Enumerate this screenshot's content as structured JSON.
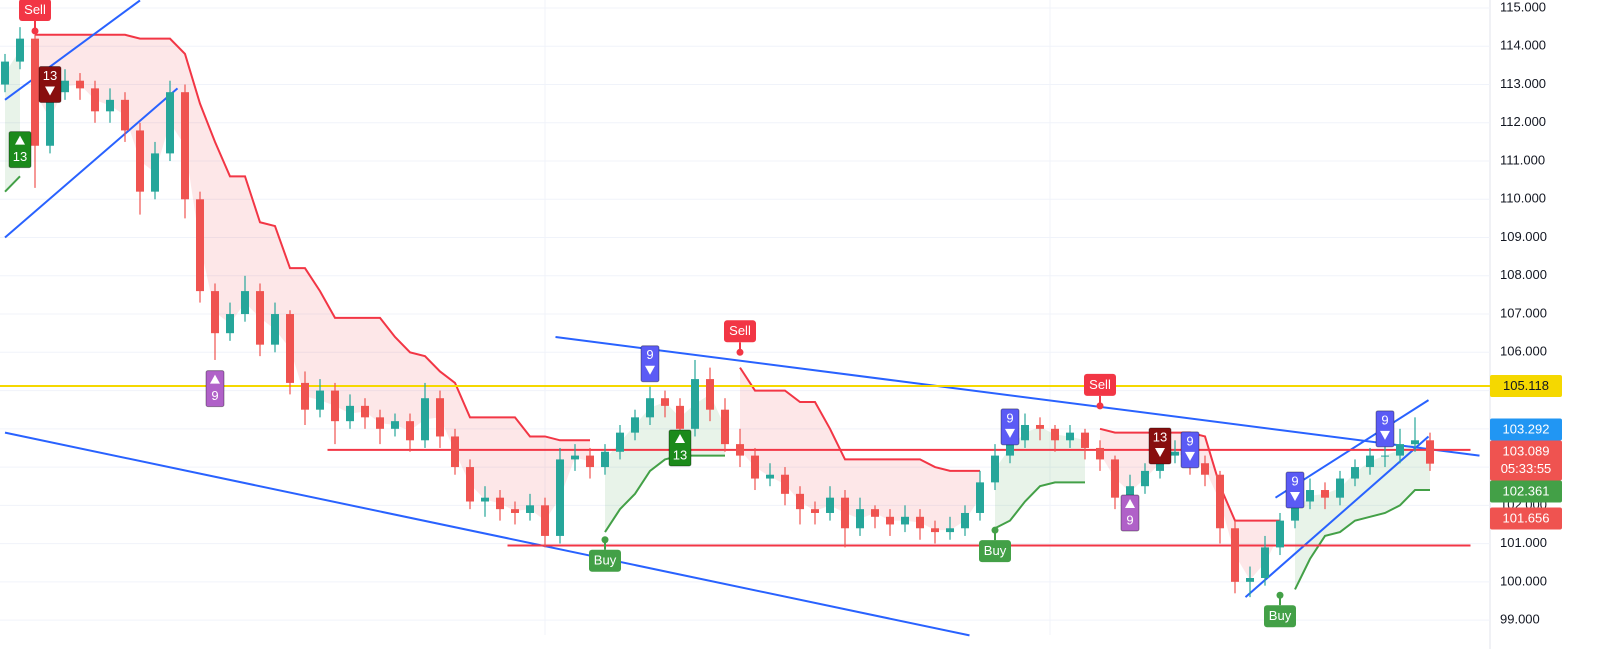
{
  "chart_data": {
    "type": "candlestick",
    "ylim": [
      98.61,
      115.21
    ],
    "yticks": [
      {
        "value": 99,
        "label": "99.000"
      },
      {
        "value": 100,
        "label": "100.000"
      },
      {
        "value": 101,
        "label": "101.000"
      },
      {
        "value": 102,
        "label": "102.000"
      },
      {
        "value": 103,
        "label": "103.000"
      },
      {
        "value": 104,
        "label": "104.000"
      },
      {
        "value": 105,
        "label": "105.000"
      },
      {
        "value": 106,
        "label": "106.000"
      },
      {
        "value": 107,
        "label": "107.000"
      },
      {
        "value": 108,
        "label": "108.000"
      },
      {
        "value": 109,
        "label": "109.000"
      },
      {
        "value": 110,
        "label": "110.000"
      },
      {
        "value": 111,
        "label": "111.000"
      },
      {
        "value": 112,
        "label": "112.000"
      },
      {
        "value": 113,
        "label": "113.000"
      },
      {
        "value": 114,
        "label": "114.000"
      },
      {
        "value": 115,
        "label": "115.000"
      }
    ],
    "grid": true,
    "up_color": "#26a69a",
    "down_color": "#ef5350",
    "ohlc": [
      [
        113.0,
        113.8,
        112.8,
        113.6
      ],
      [
        113.6,
        114.5,
        113.4,
        114.2
      ],
      [
        114.2,
        114.3,
        110.3,
        111.4
      ],
      [
        111.4,
        113.0,
        111.2,
        112.8
      ],
      [
        112.8,
        113.4,
        112.6,
        113.1
      ],
      [
        113.1,
        113.3,
        112.6,
        112.9
      ],
      [
        112.9,
        113.1,
        112.0,
        112.3
      ],
      [
        112.3,
        112.9,
        112.0,
        112.6
      ],
      [
        112.6,
        112.8,
        111.5,
        111.8
      ],
      [
        111.8,
        112.0,
        109.6,
        110.2
      ],
      [
        110.2,
        111.5,
        110.0,
        111.2
      ],
      [
        111.2,
        113.1,
        111.0,
        112.8
      ],
      [
        112.8,
        113.0,
        109.5,
        110.0
      ],
      [
        110.0,
        110.2,
        107.3,
        107.6
      ],
      [
        107.6,
        107.8,
        105.8,
        106.5
      ],
      [
        106.5,
        107.3,
        106.3,
        107.0
      ],
      [
        107.0,
        108.0,
        106.8,
        107.6
      ],
      [
        107.6,
        107.8,
        105.9,
        106.2
      ],
      [
        106.2,
        107.3,
        106.0,
        107.0
      ],
      [
        107.0,
        107.1,
        104.9,
        105.2
      ],
      [
        105.2,
        105.5,
        104.1,
        104.5
      ],
      [
        104.5,
        105.3,
        104.3,
        105.0
      ],
      [
        105.0,
        105.2,
        103.6,
        104.2
      ],
      [
        104.2,
        104.9,
        104.0,
        104.6
      ],
      [
        104.6,
        104.8,
        104.0,
        104.3
      ],
      [
        104.3,
        104.5,
        103.6,
        104.0
      ],
      [
        104.0,
        104.4,
        103.8,
        104.2
      ],
      [
        104.2,
        104.4,
        103.4,
        103.7
      ],
      [
        103.7,
        105.2,
        103.5,
        104.8
      ],
      [
        104.8,
        105.0,
        103.5,
        103.8
      ],
      [
        103.8,
        104.0,
        102.8,
        103.0
      ],
      [
        103.0,
        103.2,
        101.9,
        102.1
      ],
      [
        102.1,
        102.5,
        101.7,
        102.2
      ],
      [
        102.2,
        102.4,
        101.6,
        101.9
      ],
      [
        101.9,
        102.1,
        101.5,
        101.8
      ],
      [
        101.8,
        102.3,
        101.6,
        102.0
      ],
      [
        102.0,
        102.2,
        100.9,
        101.2
      ],
      [
        101.2,
        103.5,
        101.0,
        103.2
      ],
      [
        103.2,
        103.6,
        102.9,
        103.3
      ],
      [
        103.3,
        103.5,
        102.7,
        103.0
      ],
      [
        103.0,
        103.6,
        102.8,
        103.4
      ],
      [
        103.4,
        104.1,
        103.2,
        103.9
      ],
      [
        103.9,
        104.5,
        103.7,
        104.3
      ],
      [
        104.3,
        105.1,
        104.1,
        104.8
      ],
      [
        104.8,
        105.0,
        104.3,
        104.6
      ],
      [
        104.6,
        104.8,
        103.6,
        104.0
      ],
      [
        104.0,
        105.8,
        103.8,
        105.3
      ],
      [
        105.3,
        105.6,
        104.2,
        104.5
      ],
      [
        104.5,
        104.8,
        103.4,
        103.6
      ],
      [
        103.6,
        104.0,
        103.0,
        103.3
      ],
      [
        103.3,
        103.5,
        102.4,
        102.7
      ],
      [
        102.7,
        103.1,
        102.5,
        102.8
      ],
      [
        102.8,
        103.0,
        102.0,
        102.3
      ],
      [
        102.3,
        102.5,
        101.5,
        101.9
      ],
      [
        101.9,
        102.1,
        101.5,
        101.8
      ],
      [
        101.8,
        102.5,
        101.6,
        102.2
      ],
      [
        102.2,
        102.4,
        100.9,
        101.4
      ],
      [
        101.4,
        102.2,
        101.2,
        101.9
      ],
      [
        101.9,
        102.0,
        101.4,
        101.7
      ],
      [
        101.7,
        101.9,
        101.2,
        101.5
      ],
      [
        101.5,
        102.0,
        101.3,
        101.7
      ],
      [
        101.7,
        101.9,
        101.1,
        101.4
      ],
      [
        101.4,
        101.6,
        101.0,
        101.3
      ],
      [
        101.3,
        101.7,
        101.1,
        101.4
      ],
      [
        101.4,
        102.0,
        101.2,
        101.8
      ],
      [
        101.8,
        102.9,
        101.6,
        102.6
      ],
      [
        102.6,
        103.6,
        102.4,
        103.3
      ],
      [
        103.3,
        103.9,
        103.1,
        103.7
      ],
      [
        103.7,
        104.4,
        103.5,
        104.1
      ],
      [
        104.1,
        104.3,
        103.7,
        104.0
      ],
      [
        104.0,
        104.1,
        103.4,
        103.7
      ],
      [
        103.7,
        104.1,
        103.5,
        103.9
      ],
      [
        103.9,
        104.0,
        103.2,
        103.5
      ],
      [
        103.5,
        103.7,
        102.9,
        103.2
      ],
      [
        103.2,
        103.3,
        101.9,
        102.2
      ],
      [
        102.2,
        102.8,
        102.0,
        102.5
      ],
      [
        102.5,
        103.1,
        102.3,
        102.9
      ],
      [
        102.9,
        103.6,
        102.7,
        103.3
      ],
      [
        103.3,
        103.7,
        103.1,
        103.4
      ],
      [
        103.4,
        103.6,
        102.8,
        103.1
      ],
      [
        103.1,
        103.3,
        102.5,
        102.8
      ],
      [
        102.8,
        102.9,
        101.0,
        101.4
      ],
      [
        101.4,
        101.6,
        99.7,
        100.0
      ],
      [
        100.0,
        100.4,
        99.6,
        100.1
      ],
      [
        100.1,
        101.2,
        99.9,
        100.9
      ],
      [
        100.9,
        101.8,
        100.7,
        101.6
      ],
      [
        101.6,
        102.4,
        101.4,
        102.1
      ],
      [
        102.1,
        102.7,
        101.9,
        102.4
      ],
      [
        102.4,
        102.6,
        101.9,
        102.2
      ],
      [
        102.2,
        102.9,
        102.0,
        102.7
      ],
      [
        102.7,
        103.2,
        102.5,
        103.0
      ],
      [
        103.0,
        103.5,
        102.8,
        103.3
      ],
      [
        103.3,
        103.6,
        103.0,
        103.3
      ],
      [
        103.3,
        104.0,
        103.1,
        103.6
      ],
      [
        103.6,
        104.3,
        103.4,
        103.7
      ],
      [
        103.7,
        103.9,
        102.9,
        103.089
      ]
    ],
    "series": [
      {
        "color": "#f23645",
        "fill": "rgba(242,54,69,0.12)",
        "values": [
          null,
          null,
          114.3,
          114.3,
          114.3,
          114.3,
          114.3,
          114.3,
          114.3,
          114.2,
          114.2,
          114.2,
          113.8,
          112.5,
          111.5,
          110.6,
          110.6,
          109.4,
          109.3,
          108.2,
          108.2,
          107.6,
          106.9,
          106.9,
          106.9,
          106.9,
          106.4,
          106.0,
          105.9,
          105.5,
          105.2,
          104.3,
          104.3,
          104.3,
          104.3,
          103.8,
          103.8,
          103.7,
          103.7,
          103.7,
          null,
          null,
          null,
          null,
          null,
          null,
          null,
          null,
          null,
          105.6,
          105.0,
          105.0,
          105.0,
          104.7,
          104.7,
          104.0,
          103.2,
          103.2,
          103.2,
          103.2,
          103.2,
          103.2,
          103.0,
          102.9,
          102.9,
          102.9,
          null,
          null,
          null,
          null,
          null,
          null,
          null,
          104.0,
          103.9,
          103.9,
          103.9,
          103.9,
          103.9,
          103.9,
          103.8,
          102.5,
          101.6,
          101.6,
          101.6,
          101.6,
          null,
          null,
          null,
          null,
          null,
          null,
          null,
          null,
          null,
          null
        ]
      },
      {
        "color": "#43a047",
        "fill": "rgba(67,160,71,0.12)",
        "values": [
          110.2,
          110.6,
          null,
          null,
          null,
          null,
          null,
          null,
          null,
          null,
          null,
          null,
          null,
          null,
          null,
          null,
          null,
          null,
          null,
          null,
          null,
          null,
          null,
          null,
          null,
          null,
          null,
          null,
          null,
          null,
          null,
          null,
          null,
          null,
          null,
          null,
          null,
          null,
          null,
          null,
          101.3,
          101.9,
          102.3,
          102.9,
          103.2,
          103.3,
          103.3,
          103.3,
          103.3,
          null,
          null,
          null,
          null,
          null,
          null,
          null,
          null,
          null,
          null,
          null,
          null,
          null,
          null,
          null,
          null,
          null,
          101.4,
          101.6,
          102.1,
          102.5,
          102.6,
          102.6,
          102.6,
          null,
          null,
          null,
          null,
          null,
          null,
          null,
          null,
          null,
          null,
          null,
          null,
          null,
          99.8,
          100.6,
          101.2,
          101.3,
          101.6,
          101.7,
          101.8,
          102.0,
          102.4,
          102.4
        ]
      }
    ],
    "trendlines": [
      {
        "color": "#2962ff",
        "points": [
          [
            0,
            112.6
          ],
          [
            9,
            115.2
          ]
        ]
      },
      {
        "color": "#2962ff",
        "points": [
          [
            0,
            109.0
          ],
          [
            11.5,
            112.9
          ]
        ]
      },
      {
        "color": "#2962ff",
        "points": [
          [
            0,
            103.9
          ],
          [
            64.3,
            98.6
          ]
        ]
      },
      {
        "color": "#2962ff",
        "points": [
          [
            36.7,
            106.4
          ],
          [
            98.3,
            103.3
          ]
        ]
      },
      {
        "color": "#2962ff",
        "points": [
          [
            84.7,
            102.2
          ],
          [
            94.9,
            104.75
          ]
        ]
      },
      {
        "color": "#2962ff",
        "points": [
          [
            82.7,
            99.6
          ],
          [
            94.9,
            103.8
          ]
        ]
      },
      {
        "color": "#f23645",
        "points": [
          [
            21.5,
            103.45
          ],
          [
            97.7,
            103.45
          ]
        ]
      },
      {
        "color": "#f23645",
        "points": [
          [
            33.5,
            100.95
          ],
          [
            97.7,
            100.95
          ]
        ]
      }
    ],
    "markers": [
      {
        "kind": "sell",
        "index": 2,
        "price": 114.4,
        "text": "Sell",
        "color": "#f23645"
      },
      {
        "kind": "count",
        "index": 3,
        "price": 113.0,
        "text": "13",
        "arrow": "down",
        "color": "#880e0e"
      },
      {
        "kind": "count",
        "index": 1,
        "price": 111.3,
        "text": "13",
        "arrow": "up",
        "color": "#1b8a1b"
      },
      {
        "kind": "count",
        "index": 14,
        "price": 105.05,
        "text": "9",
        "arrow": "up",
        "color": "#b061c8"
      },
      {
        "kind": "count",
        "index": 43,
        "price": 105.7,
        "text": "9",
        "arrow": "down",
        "color": "#5b5bf5"
      },
      {
        "kind": "count",
        "index": 45,
        "price": 103.5,
        "text": "13",
        "arrow": "up",
        "color": "#1b8a1b"
      },
      {
        "kind": "sell",
        "index": 49,
        "price": 106.0,
        "text": "Sell",
        "color": "#f23645"
      },
      {
        "kind": "buy",
        "index": 40,
        "price": 101.1,
        "text": "Buy",
        "color": "#43a047"
      },
      {
        "kind": "buy",
        "index": 66,
        "price": 101.35,
        "text": "Buy",
        "color": "#43a047"
      },
      {
        "kind": "count",
        "index": 67,
        "price": 104.05,
        "text": "9",
        "arrow": "down",
        "color": "#5b5bf5"
      },
      {
        "kind": "sell",
        "index": 73,
        "price": 104.6,
        "text": "Sell",
        "color": "#f23645"
      },
      {
        "kind": "count",
        "index": 77,
        "price": 103.55,
        "text": "13",
        "arrow": "down",
        "color": "#880e0e"
      },
      {
        "kind": "count",
        "index": 79,
        "price": 103.45,
        "text": "9",
        "arrow": "down",
        "color": "#5b5bf5"
      },
      {
        "kind": "count",
        "index": 75,
        "price": 101.8,
        "text": "9",
        "arrow": "up",
        "color": "#b061c8"
      },
      {
        "kind": "count",
        "index": 86,
        "price": 102.4,
        "text": "9",
        "arrow": "down",
        "color": "#5b5bf5"
      },
      {
        "kind": "count",
        "index": 92,
        "price": 104.0,
        "text": "9",
        "arrow": "down",
        "color": "#5b5bf5"
      },
      {
        "kind": "buy",
        "index": 85,
        "price": 99.65,
        "text": "Buy",
        "color": "#43a047"
      }
    ],
    "price_labels": [
      {
        "value": 105.118,
        "color": "#f5d800",
        "text_color": "#131722",
        "line": true
      },
      {
        "value": 103.292,
        "color": "#2196f3",
        "text_color": "#ffffff"
      },
      {
        "value": 103.089,
        "color": "#ef5350",
        "text_color": "#ffffff",
        "countdown": "05:33:55"
      },
      {
        "value": 102.361,
        "color": "#43a047",
        "text_color": "#ffffff"
      },
      {
        "value": 101.656,
        "color": "#ef5350",
        "text_color": "#ffffff"
      }
    ]
  }
}
